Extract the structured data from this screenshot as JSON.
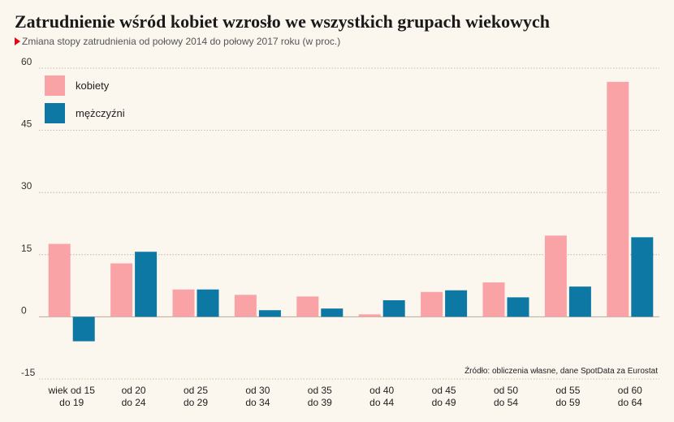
{
  "title": "Zatrudnienie wśród kobiet wzrosło we wszystkich grupach wiekowych",
  "subtitle": "Zmiana stopy zatrudnienia od połowy 2014 do połowy 2017 roku (w proc.)",
  "source": "Źródło: obliczenia własne, dane SpotData za Eurostat",
  "colors": {
    "kobiety": "#f9a3a7",
    "mezczyzni": "#0e78a5",
    "background": "#fbf6ee",
    "grid": "#b7aa9a",
    "accent": "#e30613"
  },
  "chart_data": {
    "type": "bar",
    "categories": [
      [
        "wiek od 15",
        "do 19"
      ],
      [
        "od 20",
        "do 24"
      ],
      [
        "od 25",
        "do 29"
      ],
      [
        "od 30",
        "do 34"
      ],
      [
        "od 35",
        "do 39"
      ],
      [
        "od 40",
        "do 44"
      ],
      [
        "od 45",
        "do 49"
      ],
      [
        "od 50",
        "do 54"
      ],
      [
        "od 55",
        "do 59"
      ],
      [
        "od 60",
        "do 64"
      ]
    ],
    "series": [
      {
        "name": "kobiety",
        "color": "#f9a3a7",
        "values": [
          17.6,
          12.9,
          6.6,
          5.3,
          4.9,
          0.6,
          6.0,
          8.3,
          19.6,
          56.7
        ]
      },
      {
        "name": "mężczyźni",
        "color": "#0e78a5",
        "values": [
          -5.9,
          15.7,
          6.6,
          1.6,
          2.0,
          4.0,
          6.4,
          4.7,
          7.3,
          19.2
        ]
      }
    ],
    "ylim": [
      -15,
      60
    ],
    "yticks": [
      60,
      45,
      30,
      15,
      0,
      -15
    ],
    "grid": true,
    "legend": "top-left"
  }
}
